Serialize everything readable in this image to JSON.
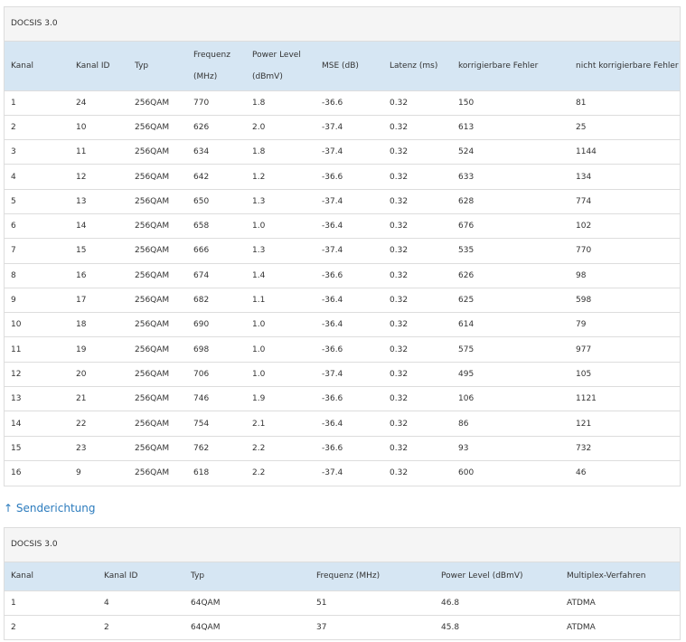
{
  "downstream": {
    "caption": "DOCSIS 3.0",
    "headers": [
      "Kanal",
      "Kanal ID",
      "Typ",
      [
        "Frequenz",
        "(MHz)"
      ],
      [
        "Power Level",
        "(dBmV)"
      ],
      "MSE (dB)",
      "Latenz (ms)",
      "korrigierbare Fehler",
      "nicht korrigierbare Fehler"
    ],
    "rows": [
      [
        "1",
        "24",
        "256QAM",
        "770",
        "1.8",
        "-36.6",
        "0.32",
        "150",
        "81"
      ],
      [
        "2",
        "10",
        "256QAM",
        "626",
        "2.0",
        "-37.4",
        "0.32",
        "613",
        "25"
      ],
      [
        "3",
        "11",
        "256QAM",
        "634",
        "1.8",
        "-37.4",
        "0.32",
        "524",
        "1144"
      ],
      [
        "4",
        "12",
        "256QAM",
        "642",
        "1.2",
        "-36.6",
        "0.32",
        "633",
        "134"
      ],
      [
        "5",
        "13",
        "256QAM",
        "650",
        "1.3",
        "-37.4",
        "0.32",
        "628",
        "774"
      ],
      [
        "6",
        "14",
        "256QAM",
        "658",
        "1.0",
        "-36.4",
        "0.32",
        "676",
        "102"
      ],
      [
        "7",
        "15",
        "256QAM",
        "666",
        "1.3",
        "-37.4",
        "0.32",
        "535",
        "770"
      ],
      [
        "8",
        "16",
        "256QAM",
        "674",
        "1.4",
        "-36.6",
        "0.32",
        "626",
        "98"
      ],
      [
        "9",
        "17",
        "256QAM",
        "682",
        "1.1",
        "-36.4",
        "0.32",
        "625",
        "598"
      ],
      [
        "10",
        "18",
        "256QAM",
        "690",
        "1.0",
        "-36.4",
        "0.32",
        "614",
        "79"
      ],
      [
        "11",
        "19",
        "256QAM",
        "698",
        "1.0",
        "-36.6",
        "0.32",
        "575",
        "977"
      ],
      [
        "12",
        "20",
        "256QAM",
        "706",
        "1.0",
        "-37.4",
        "0.32",
        "495",
        "105"
      ],
      [
        "13",
        "21",
        "256QAM",
        "746",
        "1.9",
        "-36.6",
        "0.32",
        "106",
        "1121"
      ],
      [
        "14",
        "22",
        "256QAM",
        "754",
        "2.1",
        "-36.4",
        "0.32",
        "86",
        "121"
      ],
      [
        "15",
        "23",
        "256QAM",
        "762",
        "2.2",
        "-36.6",
        "0.32",
        "93",
        "732"
      ],
      [
        "16",
        "9",
        "256QAM",
        "618",
        "2.2",
        "-37.4",
        "0.32",
        "600",
        "46"
      ]
    ]
  },
  "upstream_heading": "↑ Senderichtung",
  "upstream": {
    "caption": "DOCSIS 3.0",
    "headers": [
      "Kanal",
      "Kanal ID",
      "Typ",
      "Frequenz (MHz)",
      "Power Level (dBmV)",
      "Multiplex-Verfahren"
    ],
    "rows": [
      [
        "1",
        "4",
        "64QAM",
        "51",
        "46.8",
        "ATDMA"
      ],
      [
        "2",
        "2",
        "64QAM",
        "37",
        "45.8",
        "ATDMA"
      ]
    ]
  }
}
